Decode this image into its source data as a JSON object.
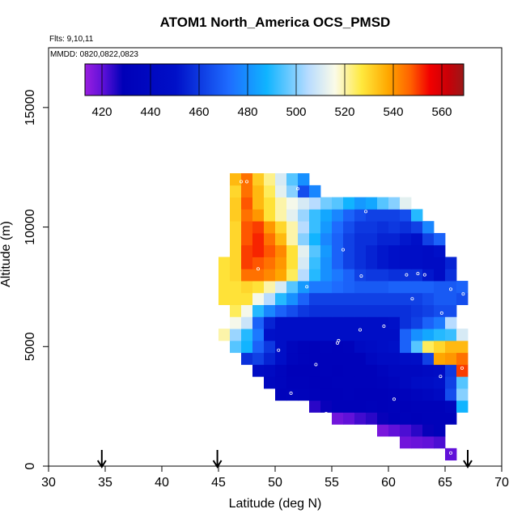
{
  "chart_data": {
    "type": "heatmap",
    "title": "ATOM1 North_America OCS_PMSD",
    "flights_label": "Flts: 9,10,11",
    "dates_label": "MMDD: 0820,0822,0823",
    "xlabel": "Latitude (deg N)",
    "ylabel": "Altitude (m)",
    "xlim": [
      30,
      70
    ],
    "ylim": [
      0,
      17500
    ],
    "x_ticks": [
      30,
      35,
      40,
      45,
      50,
      55,
      60,
      65,
      70
    ],
    "y_ticks": [
      0,
      5000,
      10000,
      15000
    ],
    "colorbar": {
      "range": [
        413,
        569
      ],
      "ticks": [
        420,
        440,
        460,
        480,
        500,
        520,
        540,
        560
      ]
    },
    "arrows_at_latitude": [
      34.7,
      44.9,
      67.0
    ],
    "bin": {
      "dlat": 1,
      "dalt": 500
    },
    "rows": [
      {
        "alt": 500,
        "lat0": 65,
        "values": [
          420
        ]
      },
      {
        "alt": 1000,
        "lat0": 61,
        "values": [
          418,
          419,
          420,
          422
        ]
      },
      {
        "alt": 1500,
        "lat0": 59,
        "values": [
          417,
          420,
          422,
          425,
          428,
          432
        ]
      },
      {
        "alt": 2000,
        "lat0": 55,
        "values": [
          418,
          420,
          423,
          425,
          428,
          430,
          432,
          430,
          431,
          432,
          432
        ]
      },
      {
        "alt": 2500,
        "lat0": 53,
        "values": [
          425,
          428,
          430,
          430,
          430,
          432,
          430,
          432,
          430,
          432,
          431,
          432,
          435,
          488
        ]
      },
      {
        "alt": 3000,
        "lat0": 50,
        "values": [
          433,
          434,
          433,
          432,
          430,
          430,
          432,
          430,
          430,
          430,
          432,
          433,
          435,
          438,
          442,
          465,
          500
        ]
      },
      {
        "alt": 3500,
        "lat0": 49,
        "values": [
          438,
          435,
          432,
          431,
          430,
          430,
          431,
          432,
          432,
          432,
          433,
          435,
          440,
          445,
          447,
          450,
          462,
          495
        ]
      },
      {
        "alt": 4000,
        "lat0": 48,
        "values": [
          445,
          442,
          435,
          430,
          430,
          430,
          431,
          430,
          431,
          432,
          432,
          435,
          440,
          440,
          440,
          442,
          445,
          460,
          550
        ]
      },
      {
        "alt": 4500,
        "lat0": 47,
        "values": [
          458,
          462,
          455,
          448,
          436,
          433,
          432,
          432,
          431,
          432,
          432,
          440,
          444,
          444,
          446,
          448,
          462,
          538,
          540,
          545
        ]
      },
      {
        "alt": 5000,
        "lat0": 46,
        "values": [
          495,
          488,
          470,
          460,
          448,
          437,
          433,
          432,
          433,
          432,
          433,
          442,
          445,
          448,
          450,
          470,
          495,
          525,
          530,
          535,
          535
        ]
      },
      {
        "alt": 5500,
        "lat0": 45,
        "values": [
          520,
          502,
          490,
          475,
          450,
          448,
          448,
          448,
          448,
          448,
          448,
          448,
          448,
          448,
          448,
          448,
          470,
          480,
          485,
          490,
          492,
          510
        ]
      },
      {
        "alt": 6000,
        "lat0": 46,
        "values": [
          515,
          508,
          470,
          455,
          448,
          448,
          448,
          448,
          448,
          448,
          448,
          448,
          448,
          448,
          450,
          458,
          462,
          470,
          475,
          505
        ]
      },
      {
        "alt": 6500,
        "lat0": 46,
        "values": [
          525,
          515,
          490,
          478,
          470,
          465,
          460,
          458,
          458,
          458,
          458,
          458,
          458,
          458,
          458,
          458,
          460,
          462,
          465,
          465
        ]
      },
      {
        "alt": 7000,
        "lat0": 45,
        "values": [
          528,
          528,
          528,
          515,
          505,
          490,
          480,
          470,
          462,
          462,
          462,
          462,
          462,
          462,
          462,
          462,
          462,
          462,
          465,
          468,
          468,
          465
        ]
      },
      {
        "alt": 7500,
        "lat0": 45,
        "values": [
          528,
          528,
          530,
          528,
          520,
          510,
          495,
          482,
          475,
          475,
          472,
          470,
          468,
          468,
          468,
          470,
          470,
          470,
          470,
          468,
          468,
          470
        ]
      },
      {
        "alt": 8000,
        "lat0": 45,
        "values": [
          528,
          530,
          545,
          545,
          542,
          538,
          525,
          505,
          490,
          480,
          475,
          470,
          462,
          460,
          460,
          458,
          458,
          458,
          452,
          445,
          458
        ]
      },
      {
        "alt": 8500,
        "lat0": 45,
        "values": [
          528,
          530,
          550,
          548,
          545,
          540,
          528,
          510,
          492,
          480,
          470,
          462,
          458,
          455,
          452,
          450,
          448,
          448,
          445,
          445,
          455
        ]
      },
      {
        "alt": 9000,
        "lat0": 46,
        "values": [
          530,
          550,
          552,
          548,
          542,
          528,
          512,
          495,
          482,
          470,
          462,
          458,
          455,
          452,
          450,
          448,
          448,
          445,
          450
        ]
      },
      {
        "alt": 9500,
        "lat0": 46,
        "values": [
          530,
          548,
          552,
          545,
          535,
          520,
          500,
          488,
          478,
          470,
          462,
          458,
          458,
          455,
          455,
          452,
          450,
          462,
          470
        ]
      },
      {
        "alt": 10000,
        "lat0": 46,
        "values": [
          530,
          548,
          550,
          540,
          530,
          520,
          505,
          492,
          482,
          472,
          465,
          460,
          460,
          458,
          460,
          458,
          462,
          478
        ]
      },
      {
        "alt": 10500,
        "lat0": 46,
        "values": [
          532,
          545,
          540,
          528,
          520,
          512,
          502,
          492,
          485,
          478,
          470,
          465,
          462,
          462,
          462,
          465,
          490
        ]
      },
      {
        "alt": 11000,
        "lat0": 46,
        "values": [
          532,
          548,
          535,
          528,
          520,
          515,
          510,
          505,
          498,
          495,
          488,
          482,
          485,
          495,
          500,
          512
        ]
      },
      {
        "alt": 11500,
        "lat0": 46,
        "values": [
          530,
          545,
          535,
          525,
          512,
          500,
          465,
          478
        ]
      },
      {
        "alt": 12000,
        "lat0": 46,
        "values": [
          535,
          545,
          532,
          522,
          510,
          495,
          480
        ]
      }
    ],
    "sample_points": [
      [
        51.4,
        3050
      ],
      [
        48.5,
        3650
      ],
      [
        53.6,
        4250
      ],
      [
        50.3,
        4850
      ],
      [
        55.6,
        5250
      ],
      [
        59.6,
        5850
      ],
      [
        55.5,
        5150
      ],
      [
        64.7,
        6400
      ],
      [
        62.1,
        7000
      ],
      [
        52.8,
        7500
      ],
      [
        66.6,
        7200
      ],
      [
        65.5,
        7400
      ],
      [
        57.6,
        7950
      ],
      [
        61.6,
        8000
      ],
      [
        62.6,
        8050
      ],
      [
        63.2,
        8000
      ],
      [
        48.5,
        8250
      ],
      [
        56.0,
        9050
      ],
      [
        58.0,
        10650
      ],
      [
        63.6,
        10900
      ],
      [
        52.0,
        11600
      ],
      [
        47.0,
        11900
      ],
      [
        47.5,
        11900
      ],
      [
        64.6,
        3750
      ],
      [
        66.5,
        4100
      ],
      [
        60.5,
        2800
      ],
      [
        54.5,
        2200
      ],
      [
        65.5,
        550
      ],
      [
        57.5,
        5700
      ]
    ]
  }
}
